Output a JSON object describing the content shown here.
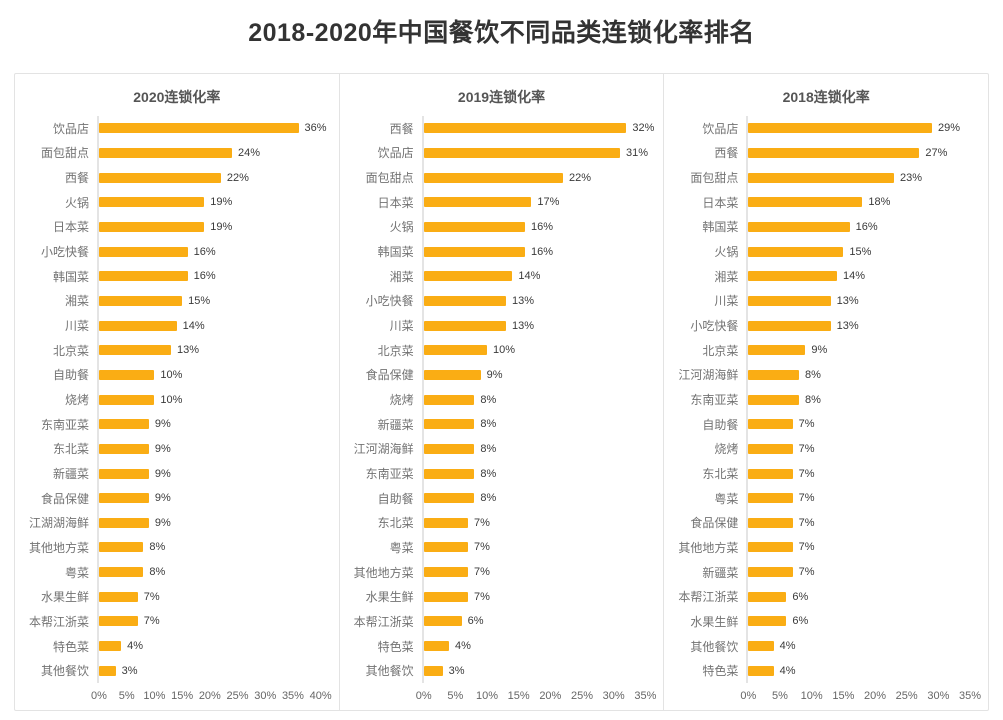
{
  "title": "2018-2020年中国餐饮不同品类连锁化率排名",
  "colors": {
    "bar": "#FAAD14",
    "title_text": "#333333",
    "panel_header_text": "#555555",
    "category_text": "#737373",
    "value_text": "#3a3a3a",
    "axis_line": "#e4e4e4",
    "panel_border": "#e3e3e3"
  },
  "chart_data": [
    {
      "type": "bar",
      "orientation": "horizontal",
      "title": "2020连锁化率",
      "unit": "%",
      "xlim": [
        0,
        40
      ],
      "grid": false,
      "xticks": [
        "0%",
        "5%",
        "10%",
        "15%",
        "20%",
        "25%",
        "30%",
        "35%",
        "40%"
      ],
      "categories": [
        "饮品店",
        "面包甜点",
        "西餐",
        "火锅",
        "日本菜",
        "小吃快餐",
        "韩国菜",
        "湘菜",
        "川菜",
        "北京菜",
        "自助餐",
        "烧烤",
        "东南亚菜",
        "东北菜",
        "新疆菜",
        "食品保健",
        "江湖湖海鲜",
        "其他地方菜",
        "粤菜",
        "水果生鲜",
        "本帮江浙菜",
        "特色菜",
        "其他餐饮"
      ],
      "values": [
        36,
        24,
        22,
        19,
        19,
        16,
        16,
        15,
        14,
        13,
        10,
        10,
        9,
        9,
        9,
        9,
        9,
        8,
        8,
        7,
        7,
        4,
        3
      ]
    },
    {
      "type": "bar",
      "orientation": "horizontal",
      "title": "2019连锁化率",
      "unit": "%",
      "xlim": [
        0,
        35
      ],
      "grid": false,
      "xticks": [
        "0%",
        "5%",
        "10%",
        "15%",
        "20%",
        "25%",
        "30%",
        "35%"
      ],
      "categories": [
        "西餐",
        "饮品店",
        "面包甜点",
        "日本菜",
        "火锅",
        "韩国菜",
        "湘菜",
        "小吃快餐",
        "川菜",
        "北京菜",
        "食品保健",
        "烧烤",
        "新疆菜",
        "江河湖海鲜",
        "东南亚菜",
        "自助餐",
        "东北菜",
        "粤菜",
        "其他地方菜",
        "水果生鲜",
        "本帮江浙菜",
        "特色菜",
        "其他餐饮"
      ],
      "values": [
        32,
        31,
        22,
        17,
        16,
        16,
        14,
        13,
        13,
        10,
        9,
        8,
        8,
        8,
        8,
        8,
        7,
        7,
        7,
        7,
        6,
        4,
        3
      ]
    },
    {
      "type": "bar",
      "orientation": "horizontal",
      "title": "2018连锁化率",
      "unit": "%",
      "xlim": [
        0,
        35
      ],
      "grid": false,
      "xticks": [
        "0%",
        "5%",
        "10%",
        "15%",
        "20%",
        "25%",
        "30%",
        "35%"
      ],
      "categories": [
        "饮品店",
        "西餐",
        "面包甜点",
        "日本菜",
        "韩国菜",
        "火锅",
        "湘菜",
        "川菜",
        "小吃快餐",
        "北京菜",
        "江河湖海鲜",
        "东南亚菜",
        "自助餐",
        "烧烤",
        "东北菜",
        "粤菜",
        "食品保健",
        "其他地方菜",
        "新疆菜",
        "本帮江浙菜",
        "水果生鲜",
        "其他餐饮",
        "特色菜"
      ],
      "values": [
        29,
        27,
        23,
        18,
        16,
        15,
        14,
        13,
        13,
        9,
        8,
        8,
        7,
        7,
        7,
        7,
        7,
        7,
        7,
        6,
        6,
        4,
        4
      ]
    }
  ]
}
